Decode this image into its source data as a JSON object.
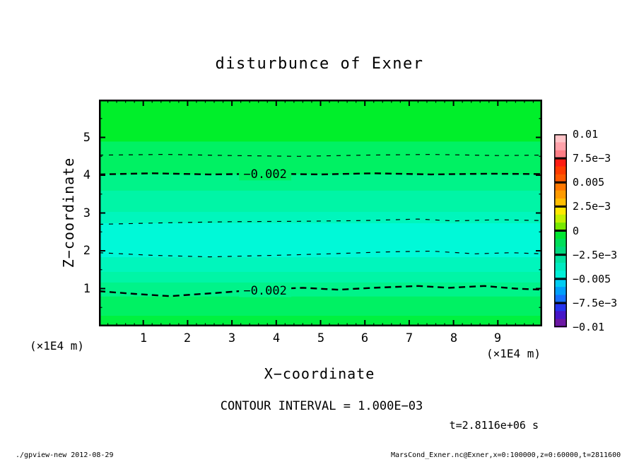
{
  "chart_data": {
    "type": "heatmap",
    "title": "disturbunce of Exner",
    "xlabel": "X−coordinate",
    "ylabel": "Z−coordinate",
    "x_unit_label": "(×1E4 m)",
    "y_unit_label": "(×1E4 m)",
    "xlim": [
      0,
      10
    ],
    "ylim": [
      0,
      6
    ],
    "x_major_ticks": [
      1,
      2,
      3,
      4,
      5,
      6,
      7,
      8,
      9
    ],
    "y_major_ticks": [
      1,
      2,
      3,
      4,
      5
    ],
    "x_minor_step": 0.2,
    "y_minor_step": 0.5,
    "contour_interval_label": "CONTOUR INTERVAL = 1.000E−03",
    "time_label": "t=2.8116e+06 s",
    "fill_bands": [
      {
        "z_from": 4.89,
        "z_to": 6.0,
        "color": "#00ef2a"
      },
      {
        "z_from": 4.02,
        "z_to": 4.89,
        "color": "#00f163"
      },
      {
        "z_from": 3.59,
        "z_to": 4.02,
        "color": "#00f389"
      },
      {
        "z_from": 3.03,
        "z_to": 3.59,
        "color": "#00f5a6"
      },
      {
        "z_from": 2.73,
        "z_to": 3.03,
        "color": "#00f6bc"
      },
      {
        "z_from": 1.83,
        "z_to": 2.73,
        "color": "#00f9d8"
      },
      {
        "z_from": 1.44,
        "z_to": 1.83,
        "color": "#00f6bc"
      },
      {
        "z_from": 1.16,
        "z_to": 1.44,
        "color": "#00f5a6"
      },
      {
        "z_from": 0.79,
        "z_to": 1.16,
        "color": "#00f389"
      },
      {
        "z_from": 0.28,
        "z_to": 0.79,
        "color": "#00f163"
      },
      {
        "z_from": 0.0,
        "z_to": 0.28,
        "color": "#00f13f"
      }
    ],
    "contours": [
      {
        "level": -0.001,
        "style": "thin",
        "points": [
          [
            0,
            4.53
          ],
          [
            1.5,
            4.55
          ],
          [
            3,
            4.52
          ],
          [
            4.5,
            4.5
          ],
          [
            6,
            4.53
          ],
          [
            7.5,
            4.55
          ],
          [
            9,
            4.52
          ],
          [
            10,
            4.53
          ]
        ]
      },
      {
        "level": -0.002,
        "style": "thick",
        "label": "−0.002",
        "label_x": 3.75,
        "label_z": 4.04,
        "points": [
          [
            0,
            4.02
          ],
          [
            1.2,
            4.05
          ],
          [
            2.5,
            4.02
          ],
          [
            3.8,
            4.04
          ],
          [
            5,
            4.02
          ],
          [
            6.2,
            4.05
          ],
          [
            7.5,
            4.02
          ],
          [
            8.8,
            4.04
          ],
          [
            10,
            4.03
          ]
        ]
      },
      {
        "level": -0.003,
        "style": "thin",
        "points": [
          [
            0,
            2.7
          ],
          [
            1.5,
            2.74
          ],
          [
            3,
            2.77
          ],
          [
            4.5,
            2.78
          ],
          [
            6,
            2.8
          ],
          [
            7.2,
            2.84
          ],
          [
            8,
            2.79
          ],
          [
            9,
            2.82
          ],
          [
            10,
            2.8
          ]
        ]
      },
      {
        "level": -0.003,
        "style": "thin",
        "points": [
          [
            0,
            1.95
          ],
          [
            1.2,
            1.88
          ],
          [
            2.5,
            1.84
          ],
          [
            4,
            1.88
          ],
          [
            5.2,
            1.92
          ],
          [
            6.5,
            1.97
          ],
          [
            7.5,
            1.99
          ],
          [
            8.5,
            1.92
          ],
          [
            9.3,
            1.95
          ],
          [
            10,
            1.92
          ]
        ]
      },
      {
        "level": -0.002,
        "style": "thick",
        "label": "−0.002",
        "label_x": 3.75,
        "label_z": 0.95,
        "points": [
          [
            0,
            0.93
          ],
          [
            0.8,
            0.86
          ],
          [
            1.6,
            0.8
          ],
          [
            2.6,
            0.88
          ],
          [
            3.6,
            0.97
          ],
          [
            4.6,
            1.02
          ],
          [
            5.4,
            0.97
          ],
          [
            6.2,
            1.02
          ],
          [
            7.2,
            1.07
          ],
          [
            7.9,
            1.02
          ],
          [
            8.7,
            1.07
          ],
          [
            9.4,
            1.0
          ],
          [
            10,
            0.97
          ]
        ]
      }
    ],
    "colorbar": {
      "labels": [
        "0.01",
        "7.5e−3",
        "0.005",
        "2.5e−3",
        "0",
        "−2.5e−3",
        "−0.005",
        "−7.5e−3",
        "−0.01"
      ],
      "boxes": [
        {
          "colors": [
            "#ffc4c8",
            "#ffa2aa",
            "#ff7e86"
          ]
        },
        {
          "colors": [
            "#ff1e14",
            "#ff3c00",
            "#ff5a00"
          ]
        },
        {
          "colors": [
            "#ff7800",
            "#ff9b00",
            "#ffbe00"
          ]
        },
        {
          "colors": [
            "#ffe800",
            "#c3ef00",
            "#78e800"
          ]
        },
        {
          "colors": [
            "#00e632",
            "#00de5a",
            "#00d87e"
          ]
        },
        {
          "colors": [
            "#00e2a0",
            "#00eac0",
            "#00f0d8"
          ]
        },
        {
          "colors": [
            "#00ccf2",
            "#009ffa",
            "#156fff"
          ]
        },
        {
          "colors": [
            "#2433ee",
            "#4616c8",
            "#6c16a4"
          ]
        }
      ]
    }
  },
  "footer": {
    "left": "./gpview-new  2012-08-29",
    "right": "MarsCond_Exner.nc@Exner,x=0:100000,z=0:60000,t=2811600"
  }
}
